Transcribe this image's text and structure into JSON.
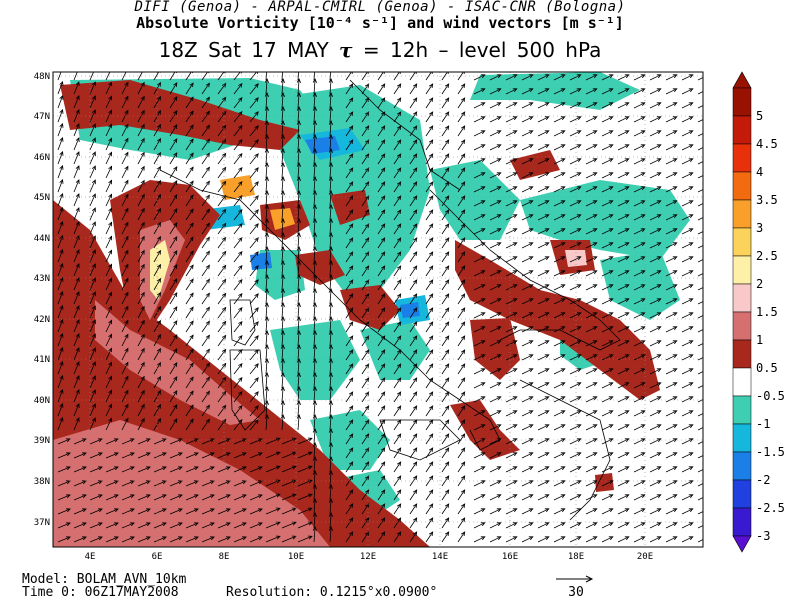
{
  "header": {
    "line1": "DIFI (Genoa)  -  ARPAL-CMIRL (Genoa)  -  ISAC-CNR (Bologna)",
    "line2": "Absolute Vorticity [10⁻⁴ s⁻¹] and wind vectors [m s⁻¹]",
    "line3_date": "18Z Sat 17 MAY",
    "line3_tau_symbol": "τ",
    "line3_tau": "= 12h  –  level 500 hPa"
  },
  "axes": {
    "lat_labels": [
      "48N",
      "47N",
      "46N",
      "45N",
      "44N",
      "43N",
      "42N",
      "41N",
      "40N",
      "39N",
      "38N",
      "37N"
    ],
    "lon_labels": [
      "4E",
      "6E",
      "8E",
      "10E",
      "12E",
      "14E",
      "16E",
      "18E",
      "20E"
    ]
  },
  "colorbar": {
    "labels": [
      "5",
      "4.5",
      "4",
      "3.5",
      "3",
      "2.5",
      "2",
      "1.5",
      "1",
      "0.5",
      "-0.5",
      "-1",
      "-1.5",
      "-2",
      "-2.5",
      "-3"
    ],
    "colors": [
      "#991100",
      "#c41a0a",
      "#e8300a",
      "#f26b0f",
      "#f8a02a",
      "#fbd35a",
      "#fff0a8",
      "#f9c9c9",
      "#d67070",
      "#a8281e",
      "#ffffff",
      "#3ecfb3",
      "#15b7dd",
      "#1b7fe8",
      "#2040e0",
      "#3a1ad0"
    ]
  },
  "footer": {
    "model": "Model: BOLAM_AVN_10km",
    "time0": "Time 0: 06Z17MAY2008",
    "resolution": "Resolution: 0.1215°x0.0900°",
    "ref_vector": "30"
  }
}
